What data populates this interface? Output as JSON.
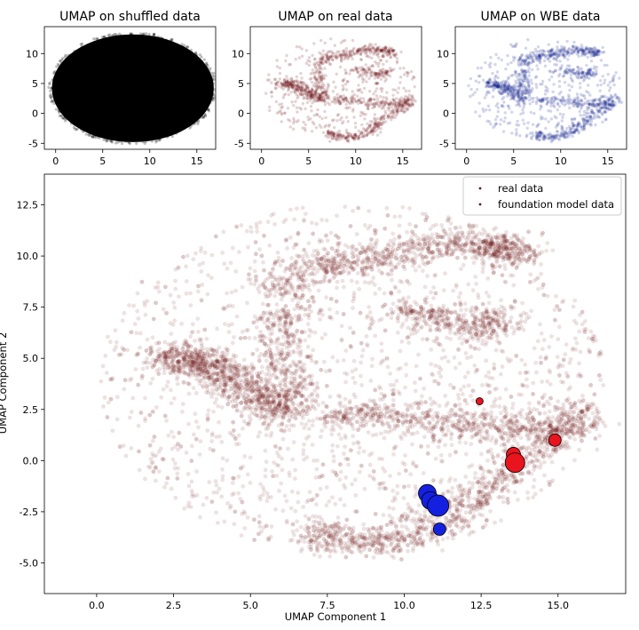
{
  "chart_data": [
    {
      "type": "scatter",
      "title": "UMAP on shuffled data",
      "xlim": [
        -1.2,
        17
      ],
      "ylim": [
        -6,
        14.5
      ],
      "xticks": [
        0,
        5,
        10,
        15
      ],
      "yticks": [
        -5,
        0,
        5,
        10
      ],
      "point_color": "#000000",
      "cloud": {
        "shape": "blob",
        "cx": 8.2,
        "cy": 4.2,
        "rx": 8.6,
        "ry": 9.0
      }
    },
    {
      "type": "scatter",
      "title": "UMAP on real data",
      "xlim": [
        -1.2,
        17
      ],
      "ylim": [
        -6,
        14.5
      ],
      "xticks": [
        0,
        5,
        10,
        15
      ],
      "yticks": [
        -5,
        0,
        5,
        10
      ],
      "point_color": "#6b0d12",
      "cloud": {
        "shape": "structure"
      }
    },
    {
      "type": "scatter",
      "title": "UMAP on WBE data",
      "xlim": [
        -1.2,
        17
      ],
      "ylim": [
        -6,
        14.5
      ],
      "xticks": [
        0,
        5,
        10,
        15
      ],
      "yticks": [
        -5,
        0,
        5,
        10
      ],
      "point_color": "#0a1a8c",
      "cloud": {
        "shape": "structure"
      }
    },
    {
      "type": "scatter",
      "title": "",
      "xlabel": "UMAP Component 1",
      "ylabel": "UMAP Component 2",
      "xlim": [
        -1.7,
        17.2
      ],
      "ylim": [
        -6.5,
        14.0
      ],
      "xticks": [
        "0.0",
        "2.5",
        "5.0",
        "7.5",
        "10.0",
        "12.5",
        "15.0"
      ],
      "yticks": [
        "-5.0",
        "-2.5",
        "0.0",
        "2.5",
        "5.0",
        "7.5",
        "10.0",
        "12.5"
      ],
      "legend": {
        "location": "top-right",
        "entries": [
          {
            "label": "real data",
            "color": "#6b0d12"
          },
          {
            "label": "foundation model data",
            "color": "#6b0d12"
          }
        ]
      },
      "series": [
        {
          "kind": "foundation-red",
          "color": "#e8141e",
          "points": [
            {
              "x": 12.45,
              "y": 2.9,
              "size": 4
            },
            {
              "x": 14.9,
              "y": 1.0,
              "size": 7
            },
            {
              "x": 13.55,
              "y": 0.3,
              "size": 8
            },
            {
              "x": 13.6,
              "y": -0.1,
              "size": 11
            }
          ]
        },
        {
          "kind": "foundation-blue",
          "color": "#1420e0",
          "points": [
            {
              "x": 10.75,
              "y": -1.6,
              "size": 10
            },
            {
              "x": 10.85,
              "y": -1.95,
              "size": 10
            },
            {
              "x": 11.1,
              "y": -2.2,
              "size": 12
            },
            {
              "x": 11.15,
              "y": -3.35,
              "size": 7
            }
          ]
        }
      ]
    }
  ]
}
